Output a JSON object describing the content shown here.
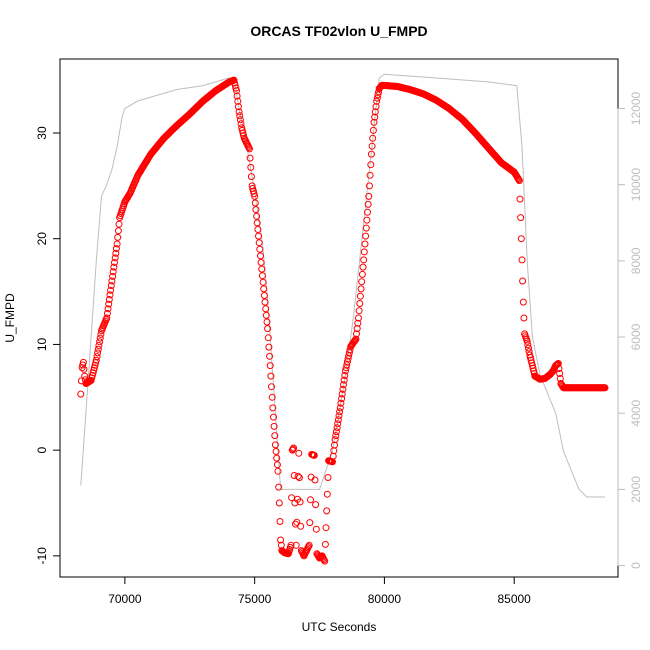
{
  "chart_data": {
    "type": "scatter",
    "title": "ORCAS TF02vlon U_FMPD",
    "xlabel": "UTC Seconds",
    "ylabel": "U_FMPD",
    "xlim": [
      67500,
      89000
    ],
    "ylim": [
      -12,
      37
    ],
    "y2lim": [
      -300,
      13300
    ],
    "x_ticks": [
      70000,
      75000,
      80000,
      85000
    ],
    "y_ticks": [
      -10,
      0,
      10,
      20,
      30
    ],
    "y2_ticks": [
      0,
      2000,
      4000,
      6000,
      8000,
      10000,
      12000
    ],
    "grid": false,
    "colors": {
      "series": "#ff0000",
      "secondary": "#bebebe",
      "axis": "#000000"
    },
    "series": [
      {
        "marker": "open-circle",
        "axis": "left",
        "points": [
          [
            68300,
            5.3
          ],
          [
            68350,
            7.8
          ],
          [
            68400,
            8.3
          ],
          [
            68450,
            7.0
          ],
          [
            68500,
            6.3
          ],
          [
            68700,
            6.6
          ],
          [
            68900,
            8.5
          ],
          [
            69100,
            11.3
          ],
          [
            69300,
            12.5
          ],
          [
            69500,
            16.0
          ],
          [
            69700,
            19.5
          ],
          [
            69800,
            22.0
          ],
          [
            70000,
            23.5
          ],
          [
            70200,
            24.3
          ],
          [
            70500,
            26.0
          ],
          [
            71000,
            28.0
          ],
          [
            71500,
            29.5
          ],
          [
            72000,
            30.7
          ],
          [
            72500,
            31.8
          ],
          [
            73000,
            33.0
          ],
          [
            73500,
            34.0
          ],
          [
            74000,
            34.8
          ],
          [
            74200,
            35.0
          ],
          [
            74300,
            34.0
          ],
          [
            74400,
            32.0
          ],
          [
            74500,
            30.5
          ],
          [
            74600,
            29.5
          ],
          [
            74700,
            29.0
          ],
          [
            74800,
            28.5
          ],
          [
            74900,
            25.0
          ],
          [
            75000,
            24.0
          ],
          [
            75200,
            19.0
          ],
          [
            75400,
            14.0
          ],
          [
            75500,
            11.5
          ],
          [
            75600,
            8.0
          ],
          [
            75700,
            4.0
          ],
          [
            75800,
            0.5
          ],
          [
            75900,
            -2.0
          ],
          [
            75950,
            -5.0
          ],
          [
            76000,
            -8.5
          ],
          [
            76050,
            -9.5
          ],
          [
            76150,
            -9.7
          ],
          [
            76300,
            -9.8
          ],
          [
            76400,
            -9.0
          ],
          [
            76450,
            0.0
          ],
          [
            76500,
            0.2
          ],
          [
            76550,
            -5.0
          ],
          [
            76600,
            -9.0
          ],
          [
            76700,
            -0.3
          ],
          [
            76800,
            -9.5
          ],
          [
            76900,
            -10.0
          ],
          [
            77000,
            -9.5
          ],
          [
            77100,
            -9.0
          ],
          [
            77200,
            -0.4
          ],
          [
            77300,
            -0.5
          ],
          [
            77400,
            -9.8
          ],
          [
            77500,
            -10.2
          ],
          [
            77600,
            -10.0
          ],
          [
            77700,
            -10.5
          ],
          [
            77850,
            -1.0
          ],
          [
            78000,
            -1.1
          ],
          [
            78100,
            1.0
          ],
          [
            78300,
            4.0
          ],
          [
            78500,
            7.5
          ],
          [
            78700,
            9.8
          ],
          [
            78900,
            10.5
          ],
          [
            79000,
            12.5
          ],
          [
            79200,
            18.0
          ],
          [
            79400,
            24.0
          ],
          [
            79500,
            28.0
          ],
          [
            79600,
            31.0
          ],
          [
            79700,
            33.0
          ],
          [
            79800,
            34.2
          ],
          [
            79900,
            34.5
          ],
          [
            80000,
            34.5
          ],
          [
            80500,
            34.4
          ],
          [
            81000,
            34.1
          ],
          [
            81500,
            33.7
          ],
          [
            82000,
            33.1
          ],
          [
            82500,
            32.3
          ],
          [
            83000,
            31.3
          ],
          [
            83500,
            30.0
          ],
          [
            84000,
            28.6
          ],
          [
            84500,
            27.2
          ],
          [
            85000,
            26.3
          ],
          [
            85200,
            25.5
          ],
          [
            85250,
            22.0
          ],
          [
            85300,
            18.0
          ],
          [
            85350,
            14.0
          ],
          [
            85400,
            11.0
          ],
          [
            85500,
            10.3
          ],
          [
            85600,
            9.0
          ],
          [
            85800,
            7.0
          ],
          [
            86000,
            6.7
          ],
          [
            86200,
            6.8
          ],
          [
            86400,
            7.2
          ],
          [
            86500,
            7.5
          ],
          [
            86600,
            8.0
          ],
          [
            86700,
            8.2
          ],
          [
            86800,
            6.3
          ],
          [
            86900,
            5.9
          ],
          [
            87000,
            5.9
          ],
          [
            87500,
            5.9
          ],
          [
            88000,
            5.9
          ],
          [
            88500,
            5.9
          ]
        ]
      },
      {
        "marker": "line",
        "axis": "right",
        "points": [
          [
            68300,
            2100
          ],
          [
            68600,
            5000
          ],
          [
            68900,
            8000
          ],
          [
            69100,
            9700
          ],
          [
            69300,
            10000
          ],
          [
            69500,
            10400
          ],
          [
            69700,
            11000
          ],
          [
            69900,
            11800
          ],
          [
            70000,
            12000
          ],
          [
            70500,
            12200
          ],
          [
            72000,
            12500
          ],
          [
            73000,
            12600
          ],
          [
            74000,
            12800
          ],
          [
            74200,
            12800
          ],
          [
            74400,
            12000
          ],
          [
            74700,
            11000
          ],
          [
            75000,
            9800
          ],
          [
            75300,
            8500
          ],
          [
            75500,
            7000
          ],
          [
            75700,
            5000
          ],
          [
            75900,
            3000
          ],
          [
            76000,
            2000
          ],
          [
            77500,
            2000
          ],
          [
            78000,
            3000
          ],
          [
            78500,
            5000
          ],
          [
            78800,
            6500
          ],
          [
            79200,
            9000
          ],
          [
            79600,
            11500
          ],
          [
            79800,
            12800
          ],
          [
            80000,
            12900
          ],
          [
            82000,
            12800
          ],
          [
            84000,
            12700
          ],
          [
            85100,
            12600
          ],
          [
            85300,
            11000
          ],
          [
            85500,
            8000
          ],
          [
            85700,
            6000
          ],
          [
            86000,
            5000
          ],
          [
            86300,
            4500
          ],
          [
            86600,
            4000
          ],
          [
            86900,
            3000
          ],
          [
            87200,
            2500
          ],
          [
            87500,
            2000
          ],
          [
            87800,
            1800
          ],
          [
            88000,
            1800
          ],
          [
            88500,
            1800
          ]
        ]
      }
    ]
  }
}
